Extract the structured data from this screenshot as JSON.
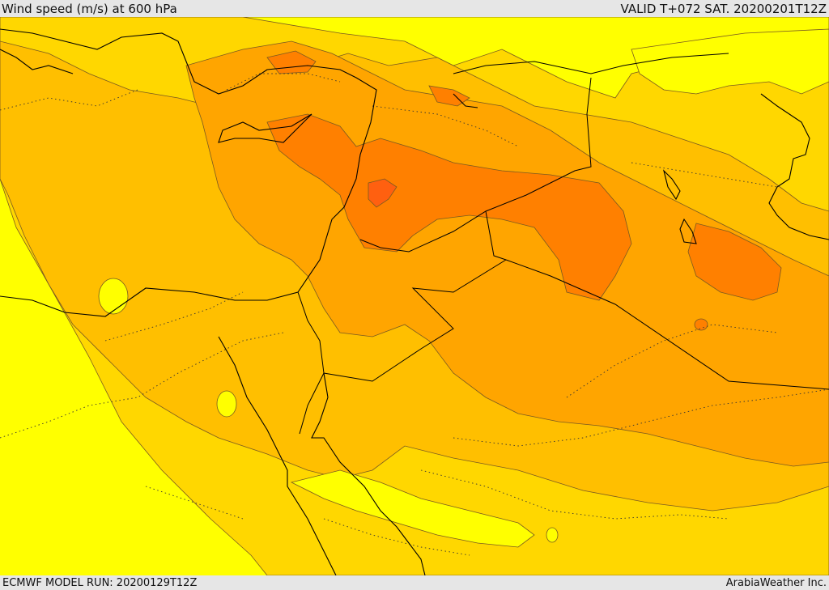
{
  "header": {
    "title": "Wind speed (m/s) at 600 hPa",
    "valid_time": "VALID T+072 SAT. 20200201T12Z"
  },
  "footer": {
    "model_run": "ECMWF MODEL RUN: 20200129T12Z",
    "credit": "ArabiaWeather Inc."
  },
  "map": {
    "colors": {
      "band_10_15": "#ffff00",
      "band_15_20": "#ffd700",
      "band_20_25": "#ffbf00",
      "band_25_30": "#ffa500",
      "band_30_35": "#ff8000",
      "band_35_40": "#ff6010",
      "coastline": "#000000",
      "contour": "#7a5a20"
    }
  }
}
